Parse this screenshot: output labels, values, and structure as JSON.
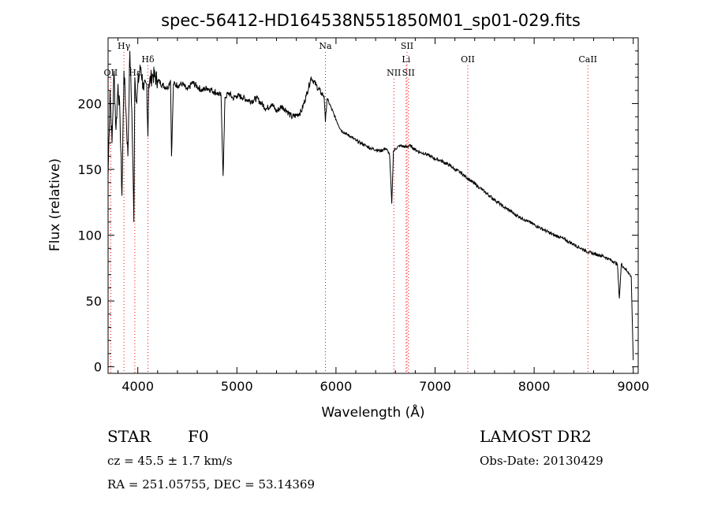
{
  "chart_data": {
    "type": "line",
    "title": "spec-56412-HD164538N551850M01_sp01-029.fits",
    "xlabel": "Wavelength (Å)",
    "ylabel": "Flux (relative)",
    "xlim": [
      3700,
      9050
    ],
    "ylim": [
      -5,
      250
    ],
    "xticks": [
      "4000",
      "5000",
      "6000",
      "7000",
      "8000",
      "9000"
    ],
    "yticks": [
      "0",
      "50",
      "100",
      "150",
      "200"
    ],
    "line_color": "#000000",
    "marker_color": "#ff0000",
    "series": [
      {
        "name": "flux",
        "x": [
          3700,
          3720,
          3740,
          3760,
          3780,
          3800,
          3820,
          3840,
          3860,
          3880,
          3900,
          3920,
          3940,
          3960,
          3970,
          3990,
          4000,
          4030,
          4060,
          4090,
          4102,
          4110,
          4150,
          4200,
          4250,
          4300,
          4330,
          4340,
          4360,
          4400,
          4450,
          4500,
          4550,
          4600,
          4650,
          4700,
          4750,
          4800,
          4840,
          4861,
          4880,
          4920,
          4960,
          5000,
          5050,
          5100,
          5150,
          5200,
          5250,
          5300,
          5350,
          5400,
          5450,
          5500,
          5550,
          5600,
          5650,
          5700,
          5750,
          5800,
          5850,
          5880,
          5893,
          5910,
          5950,
          6000,
          6050,
          6100,
          6150,
          6200,
          6250,
          6300,
          6350,
          6400,
          6450,
          6500,
          6540,
          6563,
          6580,
          6620,
          6650,
          6700,
          6750,
          6800,
          6850,
          6900,
          6950,
          7000,
          7050,
          7100,
          7150,
          7200,
          7250,
          7300,
          7350,
          7400,
          7450,
          7500,
          7550,
          7600,
          7650,
          7700,
          7750,
          7800,
          7850,
          7900,
          7950,
          8000,
          8050,
          8100,
          8150,
          8200,
          8250,
          8300,
          8350,
          8400,
          8450,
          8500,
          8550,
          8600,
          8650,
          8700,
          8750,
          8800,
          8840,
          8860,
          8880,
          8900,
          8950,
          8980,
          9000
        ],
        "y": [
          145,
          210,
          170,
          225,
          180,
          215,
          190,
          130,
          225,
          195,
          160,
          240,
          195,
          110,
          220,
          200,
          215,
          228,
          210,
          215,
          175,
          215,
          222,
          218,
          214,
          212,
          218,
          160,
          215,
          214,
          215,
          210,
          216,
          213,
          210,
          212,
          210,
          208,
          206,
          145,
          205,
          208,
          204,
          206,
          205,
          203,
          202,
          204,
          200,
          196,
          200,
          194,
          198,
          195,
          190,
          191,
          194,
          206,
          220,
          214,
          208,
          206,
          186,
          204,
          197,
          188,
          180,
          177,
          175,
          172,
          170,
          168,
          166,
          165,
          164,
          166,
          162,
          124,
          164,
          167,
          168,
          167,
          168,
          165,
          163,
          162,
          160,
          158,
          157,
          155,
          153,
          150,
          148,
          145,
          142,
          139,
          136,
          133,
          130,
          127,
          124,
          121,
          119,
          116,
          114,
          112,
          110,
          108,
          106,
          104,
          102,
          100,
          99,
          97,
          95,
          93,
          91,
          89,
          87,
          86,
          85,
          84,
          82,
          80,
          78,
          52,
          78,
          76,
          72,
          68,
          5
        ]
      }
    ],
    "line_markers": [
      {
        "label": "Hγ",
        "x": 3860,
        "row": 1
      },
      {
        "label": "OII",
        "x": 3727,
        "row": 3
      },
      {
        "label": "Hδ",
        "x": 4102,
        "row": 2
      },
      {
        "label": "Hε",
        "x": 3970,
        "row": 3
      },
      {
        "label": "Na",
        "x": 5893,
        "row": 1
      },
      {
        "label": "SII",
        "x": 6717,
        "row": 1
      },
      {
        "label": "Li",
        "x": 6708,
        "row": 2
      },
      {
        "label": "NII",
        "x": 6584,
        "row": 3
      },
      {
        "label": "SII",
        "x": 6731,
        "row": 3
      },
      {
        "label": "OII",
        "x": 7330,
        "row": 2
      },
      {
        "label": "CaII",
        "x": 8542,
        "row": 2
      }
    ]
  },
  "info": {
    "class": "STAR",
    "subclass": "F0",
    "cz": "cz = 45.5 ± 1.7 km/s",
    "coords": "RA = 251.05755, DEC =  53.14369",
    "survey": "LAMOST DR2",
    "obs_date": "Obs-Date: 20130429"
  }
}
